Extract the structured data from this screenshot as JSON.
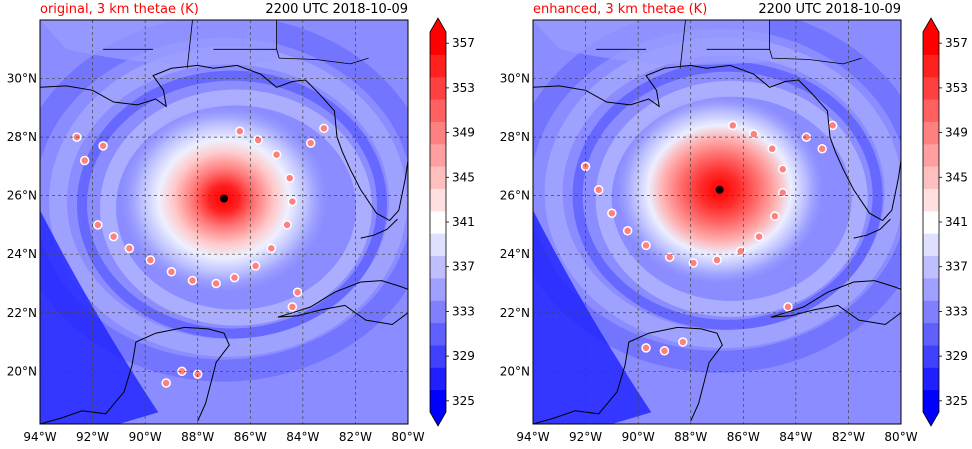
{
  "colors": {
    "title": "#ff0000",
    "low": "#0000ff",
    "high": "#ff0000",
    "mid": "#ffffff",
    "storm_center": "#000000",
    "coastline": "#000000",
    "grid": "#444444"
  },
  "colorbar": {
    "levels": [
      325,
      327,
      329,
      331,
      333,
      335,
      337,
      339,
      341,
      343,
      345,
      347,
      349,
      351,
      353,
      355,
      357,
      359
    ],
    "tick_labels": [
      "325",
      "329",
      "333",
      "337",
      "341",
      "345",
      "349",
      "353",
      "357"
    ]
  },
  "chart_data": [
    {
      "type": "heatmap",
      "title_left": "original, 3 km thetae (K)",
      "title_right": "2200 UTC 2018-10-09",
      "xlim": [
        -94,
        -80
      ],
      "ylim": [
        18.2,
        32
      ],
      "x_ticks": [
        -94,
        -92,
        -90,
        -88,
        -86,
        -84,
        -82,
        -80
      ],
      "x_tick_labels": [
        "94°W",
        "92°W",
        "90°W",
        "88°W",
        "86°W",
        "84°W",
        "82°W",
        "80°W"
      ],
      "y_ticks": [
        20,
        22,
        24,
        26,
        28,
        30
      ],
      "y_tick_labels": [
        "20°N",
        "22°N",
        "24°N",
        "26°N",
        "28°N",
        "30°N"
      ],
      "grid": true,
      "storm_center": {
        "lon": -87.0,
        "lat": 25.9
      },
      "colorbar_range": [
        325,
        359
      ]
    },
    {
      "type": "heatmap",
      "title_left": "enhanced, 3 km thetae (K)",
      "title_right": "2200 UTC 2018-10-09",
      "xlim": [
        -94,
        -80
      ],
      "ylim": [
        18.2,
        32
      ],
      "x_ticks": [
        -94,
        -92,
        -90,
        -88,
        -86,
        -84,
        -82,
        -80
      ],
      "x_tick_labels": [
        "94°W",
        "92°W",
        "90°W",
        "88°W",
        "86°W",
        "84°W",
        "82°W",
        "80°W"
      ],
      "y_ticks": [
        20,
        22,
        24,
        26,
        28,
        30
      ],
      "y_tick_labels": [
        "20°N",
        "22°N",
        "24°N",
        "26°N",
        "28°N",
        "30°N"
      ],
      "grid": true,
      "storm_center": {
        "lon": -86.9,
        "lat": 26.2
      },
      "colorbar_range": [
        325,
        359
      ]
    }
  ]
}
